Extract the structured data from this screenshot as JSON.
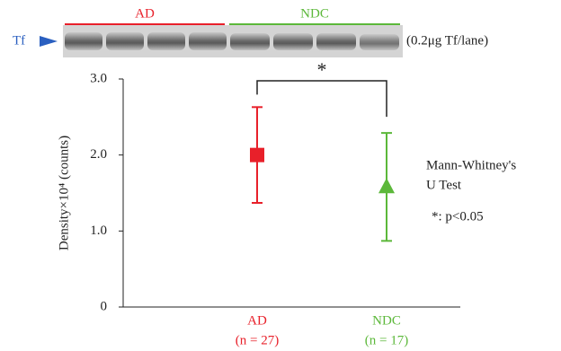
{
  "chart_data": {
    "type": "errorbar",
    "blot_label": "Tf",
    "blot_note": "(0.2μg Tf/lane)",
    "y_label": "Density×10⁴ (counts)",
    "categories": [
      "AD",
      "NDC"
    ],
    "sample_sizes": [
      "(n = 27)",
      "(n = 17)"
    ],
    "values": [
      2.0,
      1.58
    ],
    "errors": [
      0.63,
      0.71
    ],
    "colors": [
      "#e8202a",
      "#5cb83a"
    ],
    "markers": [
      "square",
      "triangle"
    ],
    "ylim": [
      0,
      3
    ],
    "yticks": [
      0,
      {
        "value": 1,
        "label": "1.0"
      },
      {
        "value": 2,
        "label": "2.0"
      },
      {
        "value": 3,
        "label": "3.0"
      }
    ],
    "significance": "*",
    "annotations": [
      "Mann-Whitney's",
      "U Test",
      "*: p<0.05"
    ]
  }
}
